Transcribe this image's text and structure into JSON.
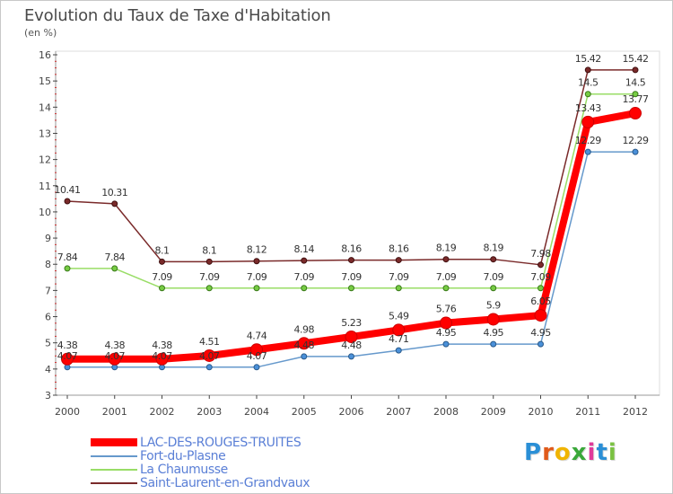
{
  "title": "Evolution du Taux de Taxe d'Habitation",
  "unit": "(en %)",
  "logo": {
    "text": "Proxiti",
    "colors": [
      "#2a8fd6",
      "#e05a1a",
      "#f0b400",
      "#3aa83a",
      "#e03a9a",
      "#2a8fd6",
      "#7ac142"
    ]
  },
  "chart_data": {
    "type": "line",
    "title": "Evolution du Taux de Taxe d'Habitation",
    "ylabel": "(en %)",
    "xlabel": "",
    "x": [
      "2000",
      "2001",
      "2002",
      "2003",
      "2004",
      "2005",
      "2006",
      "2007",
      "2008",
      "2009",
      "2010",
      "2011",
      "2012"
    ],
    "ylim": [
      3,
      16
    ],
    "yticks": [
      "3",
      "4",
      "5",
      "6",
      "7",
      "8",
      "9",
      "10",
      "11",
      "12",
      "13",
      "14",
      "15",
      "16"
    ],
    "grid": false,
    "legend_position": "bottom-left",
    "series": [
      {
        "name": "LAC-DES-ROUGES-TRUITES",
        "color": "#ff0000",
        "values": [
          4.38,
          4.38,
          4.38,
          4.51,
          4.74,
          4.98,
          5.23,
          5.49,
          5.76,
          5.9,
          6.05,
          13.43,
          13.77
        ],
        "labels": [
          "4.38",
          "4.38",
          "4.38",
          "4.51",
          "4.74",
          "4.98",
          "5.23",
          "5.49",
          "5.76",
          "5.9",
          "6.05",
          "13.43",
          "13.77"
        ]
      },
      {
        "name": "Fort-du-Plasne",
        "color": "#6699cc",
        "values": [
          4.07,
          4.07,
          4.07,
          4.07,
          4.07,
          4.48,
          4.48,
          4.71,
          4.95,
          4.95,
          4.95,
          12.29,
          12.29
        ],
        "labels": [
          "4.07",
          "4.07",
          "4.07",
          "4.07",
          "4.07",
          "4.48",
          "4.48",
          "4.71",
          "4.95",
          "4.95",
          "4.95",
          "12.29",
          "12.29"
        ]
      },
      {
        "name": "La Chaumusse",
        "color": "#99dd66",
        "values": [
          7.84,
          7.84,
          7.09,
          7.09,
          7.09,
          7.09,
          7.09,
          7.09,
          7.09,
          7.09,
          7.09,
          14.5,
          14.5
        ],
        "labels": [
          "7.84",
          "7.84",
          "7.09",
          "7.09",
          "7.09",
          "7.09",
          "7.09",
          "7.09",
          "7.09",
          "7.09",
          "7.09",
          "14.5",
          "14.5"
        ]
      },
      {
        "name": "Saint-Laurent-en-Grandvaux",
        "color": "#7a2a2a",
        "values": [
          10.41,
          10.31,
          8.1,
          8.1,
          8.12,
          8.14,
          8.16,
          8.16,
          8.19,
          8.19,
          7.98,
          15.42,
          15.42
        ],
        "labels": [
          "10.41",
          "10.31",
          "8.1",
          "8.1",
          "8.12",
          "8.14",
          "8.16",
          "8.16",
          "8.19",
          "8.19",
          "7.98",
          "15.42",
          "15.42"
        ]
      }
    ]
  }
}
